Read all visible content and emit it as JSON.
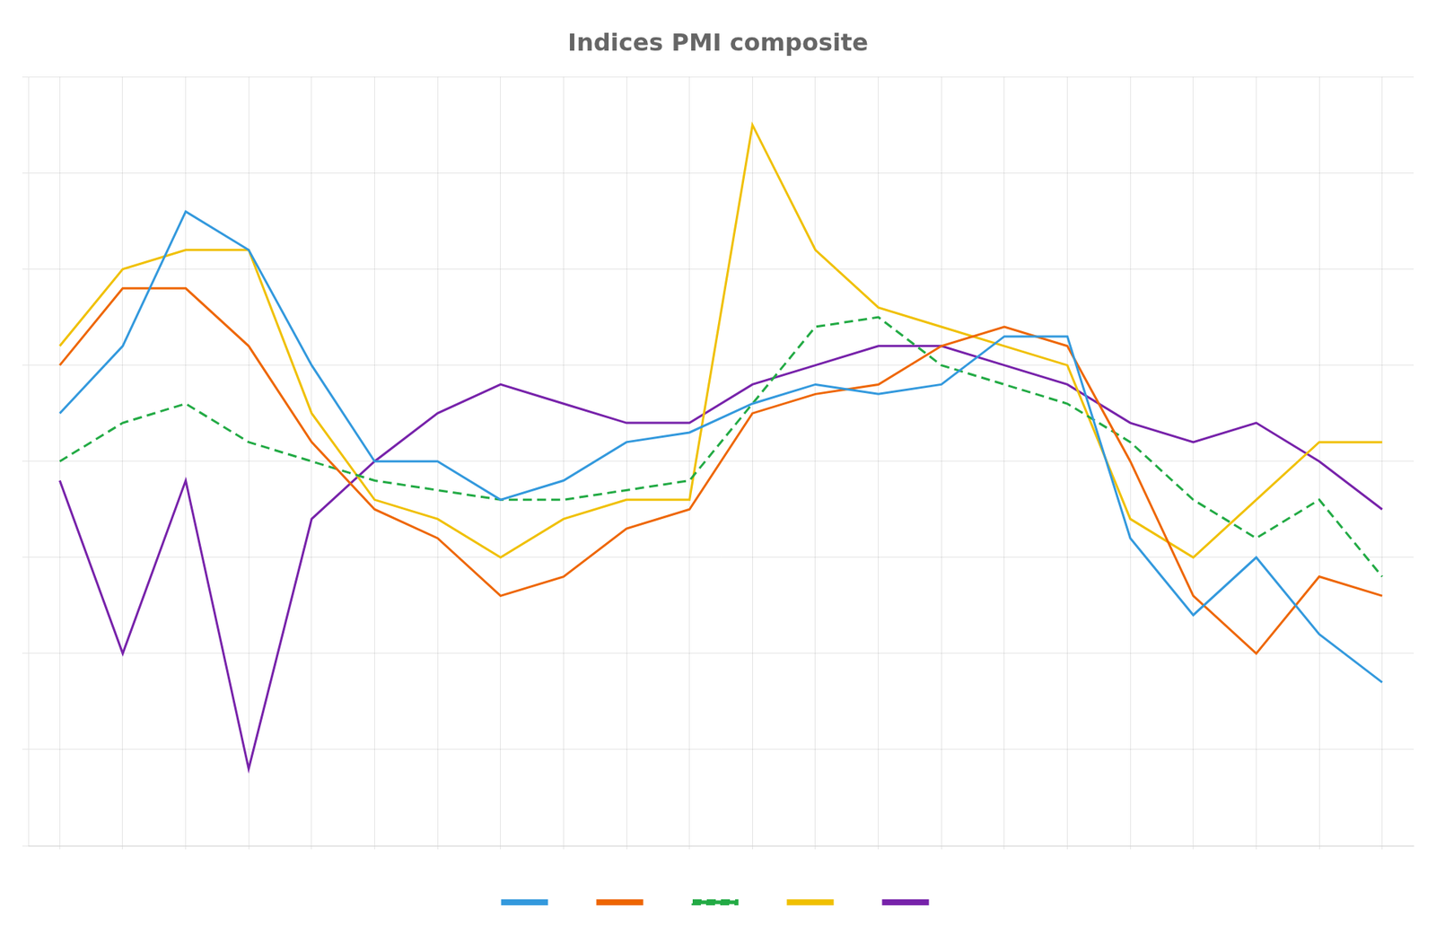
{
  "chart_data": {
    "type": "line",
    "title": "Indices PMI composite",
    "categories": [
      null,
      null,
      null,
      null,
      null,
      null,
      null,
      null,
      null,
      null,
      null,
      null,
      null,
      null,
      null,
      null,
      null,
      null,
      null,
      null,
      null,
      null
    ],
    "series": [
      {
        "color": "#3399dd",
        "line_style": "solid",
        "values": [
          55,
          62,
          76,
          72,
          60,
          50,
          50,
          46,
          48,
          52,
          53,
          56,
          58,
          57,
          58,
          63,
          63,
          42,
          34,
          40,
          32,
          27
        ]
      },
      {
        "color": "#ee6600",
        "line_style": "solid",
        "values": [
          60,
          68,
          68,
          62,
          52,
          45,
          42,
          36,
          38,
          43,
          45,
          55,
          57,
          58,
          62,
          64,
          62,
          50,
          36,
          30,
          38,
          36
        ]
      },
      {
        "color": "#22aa44",
        "line_style": "dashed",
        "values": [
          50,
          54,
          56,
          52,
          50,
          48,
          47,
          46,
          46,
          47,
          48,
          56,
          64,
          65,
          60,
          58,
          56,
          52,
          46,
          42,
          46,
          38
        ]
      },
      {
        "color": "#f0c000",
        "line_style": "solid",
        "values": [
          62,
          70,
          72,
          72,
          55,
          46,
          44,
          40,
          44,
          46,
          46,
          85,
          72,
          66,
          64,
          62,
          60,
          44,
          40,
          46,
          52,
          52
        ]
      },
      {
        "color": "#7722aa",
        "line_style": "solid",
        "values": [
          48,
          30,
          48,
          18,
          44,
          50,
          55,
          58,
          56,
          54,
          54,
          58,
          60,
          62,
          62,
          60,
          58,
          54,
          52,
          54,
          50,
          45
        ]
      }
    ],
    "ylim": [
      10,
      90
    ],
    "yticks": [
      10,
      20,
      30,
      40,
      50,
      60,
      70,
      80,
      90
    ],
    "grid": true,
    "legend": "bottom",
    "tick_labels": false
  }
}
